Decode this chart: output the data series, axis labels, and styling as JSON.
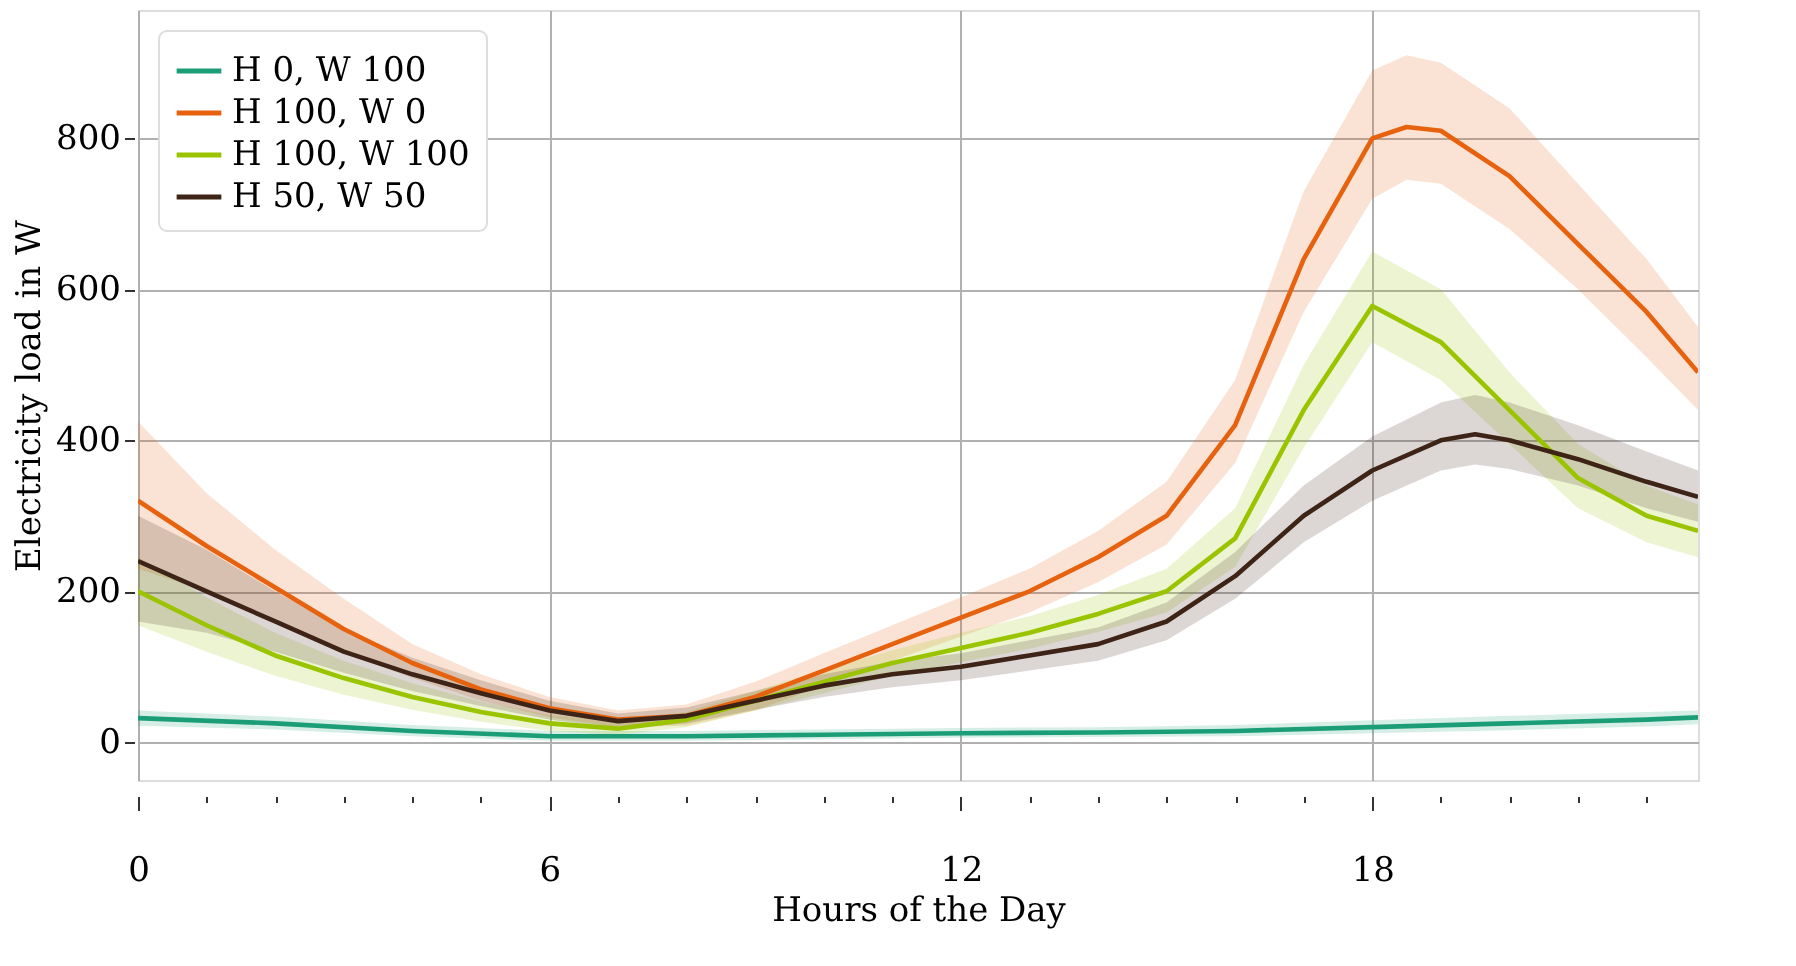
{
  "chart_data": {
    "type": "line",
    "xlabel": "Hours of the Day",
    "ylabel": "Electricity load in W",
    "xlim": [
      0,
      22.75
    ],
    "ylim": [
      -50,
      970
    ],
    "xticks": [
      0,
      {
        "value": 1,
        "label": null
      },
      {
        "value": 2,
        "label": null
      },
      {
        "value": 3,
        "label": null
      },
      {
        "value": 4,
        "label": null
      },
      {
        "value": 5,
        "label": null
      },
      6,
      {
        "value": 7,
        "label": null
      },
      {
        "value": 8,
        "label": null
      },
      {
        "value": 9,
        "label": null
      },
      {
        "value": 10,
        "label": null
      },
      {
        "value": 11,
        "label": null
      },
      12,
      {
        "value": 13,
        "label": null
      },
      {
        "value": 14,
        "label": null
      },
      {
        "value": 15,
        "label": null
      },
      {
        "value": 16,
        "label": null
      },
      {
        "value": 17,
        "label": null
      },
      18,
      {
        "value": 19,
        "label": null
      },
      {
        "value": 20,
        "label": null
      },
      {
        "value": 21,
        "label": null
      },
      {
        "value": 22,
        "label": null
      }
    ],
    "yticks": [
      0,
      200,
      400,
      600,
      800
    ],
    "grid": true,
    "legend": "top left",
    "line_style": "solid",
    "marker": "none",
    "series": [
      {
        "name": "H 0, W 100",
        "color": "#1b9e77",
        "x": [
          0,
          2,
          4,
          6,
          8,
          10,
          12,
          14,
          16,
          18,
          20,
          22,
          22.75
        ],
        "values": [
          32,
          25,
          15,
          8,
          8,
          10,
          12,
          13,
          15,
          20,
          25,
          30,
          33
        ],
        "lower": [
          22,
          17,
          8,
          2,
          2,
          4,
          6,
          7,
          8,
          12,
          16,
          21,
          24
        ],
        "upper": [
          42,
          34,
          23,
          15,
          15,
          17,
          19,
          20,
          23,
          29,
          35,
          40,
          42
        ]
      },
      {
        "name": "H 100, W 0",
        "color": "#e6620f",
        "x": [
          0,
          1,
          2,
          3,
          4,
          5,
          6,
          7,
          8,
          9,
          10,
          11,
          12,
          13,
          14,
          15,
          16,
          17,
          18,
          18.5,
          19,
          20,
          21,
          22,
          22.75
        ],
        "values": [
          320,
          260,
          205,
          150,
          105,
          70,
          45,
          30,
          35,
          60,
          95,
          130,
          165,
          200,
          245,
          300,
          420,
          640,
          800,
          815,
          810,
          750,
          660,
          570,
          490
        ],
        "lower": [
          230,
          200,
          160,
          120,
          85,
          55,
          33,
          20,
          22,
          42,
          75,
          108,
          140,
          172,
          212,
          262,
          370,
          570,
          720,
          745,
          740,
          680,
          600,
          510,
          440
        ],
        "upper": [
          425,
          330,
          255,
          190,
          130,
          90,
          60,
          42,
          50,
          80,
          118,
          155,
          192,
          230,
          280,
          345,
          480,
          730,
          890,
          910,
          900,
          840,
          740,
          640,
          550
        ]
      },
      {
        "name": "H 100, W 100",
        "color": "#9bc400",
        "x": [
          0,
          1,
          2,
          3,
          4,
          5,
          6,
          7,
          8,
          9,
          10,
          11,
          12,
          13,
          14,
          15,
          16,
          17,
          18,
          19,
          20,
          21,
          22,
          22.75
        ],
        "values": [
          200,
          155,
          115,
          85,
          60,
          40,
          25,
          18,
          30,
          55,
          80,
          105,
          125,
          145,
          170,
          200,
          270,
          440,
          578,
          530,
          440,
          350,
          300,
          280
        ],
        "lower": [
          155,
          120,
          88,
          63,
          43,
          27,
          15,
          10,
          20,
          42,
          65,
          88,
          106,
          124,
          146,
          172,
          232,
          390,
          530,
          480,
          395,
          310,
          265,
          245
        ],
        "upper": [
          245,
          192,
          145,
          108,
          78,
          54,
          36,
          27,
          40,
          68,
          96,
          122,
          145,
          167,
          195,
          230,
          310,
          500,
          650,
          600,
          490,
          395,
          340,
          315
        ]
      },
      {
        "name": "H 50, W 50",
        "color": "#3d2416",
        "x": [
          0,
          1,
          2,
          3,
          4,
          5,
          6,
          7,
          8,
          9,
          10,
          11,
          12,
          13,
          14,
          15,
          16,
          17,
          18,
          19,
          19.5,
          20,
          21,
          22,
          22.75
        ],
        "values": [
          240,
          200,
          160,
          120,
          90,
          65,
          42,
          28,
          35,
          55,
          75,
          90,
          100,
          115,
          130,
          160,
          220,
          300,
          360,
          400,
          408,
          400,
          375,
          345,
          325
        ],
        "lower": [
          160,
          145,
          120,
          92,
          68,
          48,
          30,
          18,
          25,
          43,
          60,
          73,
          82,
          95,
          108,
          135,
          190,
          265,
          320,
          360,
          368,
          362,
          340,
          310,
          292
        ],
        "upper": [
          300,
          255,
          200,
          150,
          112,
          82,
          55,
          38,
          46,
          68,
          90,
          107,
          118,
          135,
          152,
          185,
          252,
          340,
          405,
          450,
          460,
          450,
          420,
          385,
          360
        ]
      }
    ]
  }
}
